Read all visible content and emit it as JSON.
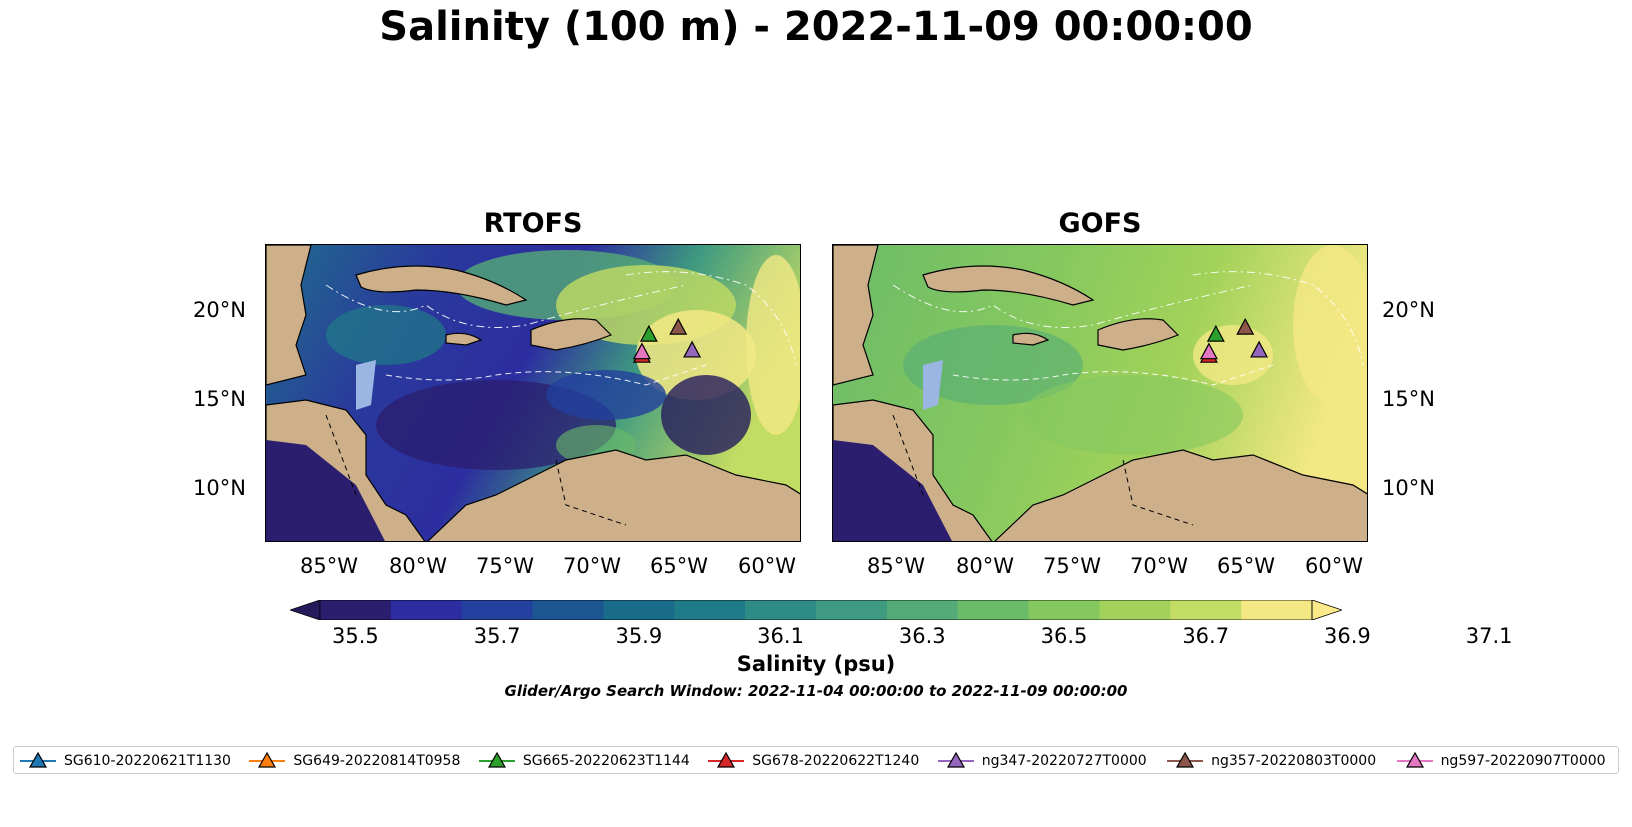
{
  "title": "Salinity (100 m) - 2022-11-09 00:00:00",
  "panels": [
    {
      "title": "RTOFS",
      "style": "rtofs"
    },
    {
      "title": "GOFS",
      "style": "gofs"
    }
  ],
  "lon_labels": [
    "85°W",
    "80°W",
    "75°W",
    "70°W",
    "65°W",
    "60°W"
  ],
  "lat_labels": [
    "20°N",
    "15°N",
    "10°N"
  ],
  "colorbar": {
    "ticks": [
      "35.5",
      "35.7",
      "35.9",
      "36.1",
      "36.3",
      "36.5",
      "36.7",
      "36.9",
      "37.1"
    ],
    "label": "Salinity (psu)",
    "colors": [
      "#2b1e6e",
      "#2c2da0",
      "#23409e",
      "#1c5692",
      "#196b8a",
      "#1f7b88",
      "#2d8a85",
      "#3e9a80",
      "#55ab77",
      "#6bbb69",
      "#85c85f",
      "#a2d25a",
      "#c3dc63",
      "#f3e884"
    ],
    "under_color": "#241a5c",
    "over_color": "#fbe98a"
  },
  "search_window": "Glider/Argo Search Window: 2022-11-04 00:00:00 to 2022-11-09 00:00:00",
  "legend": [
    {
      "label": "SG610-20220621T1130",
      "color": "#1f77b4"
    },
    {
      "label": "SG649-20220814T0958",
      "color": "#ff7f0e"
    },
    {
      "label": "SG665-20220623T1144",
      "color": "#2ca02c"
    },
    {
      "label": "SG678-20220622T1240",
      "color": "#d62728"
    },
    {
      "label": "ng347-20220727T0000",
      "color": "#9467bd"
    },
    {
      "label": "ng357-20220803T0000",
      "color": "#8c564b"
    },
    {
      "label": "ng597-20220907T0000",
      "color": "#e377c2"
    }
  ],
  "map_extent": {
    "lon_min": -89,
    "lon_max": -58,
    "lat_min": 7,
    "lat_max": 24
  },
  "glider_positions": [
    {
      "name": "SG665-20220623T1144",
      "lon": -66.8,
      "lat": 18.8
    },
    {
      "name": "ng357-20220803T0000",
      "lon": -65.1,
      "lat": 19.2
    },
    {
      "name": "ng347-20220727T0000",
      "lon": -64.3,
      "lat": 17.9
    },
    {
      "name": "SG678-20220622T1240",
      "lon": -67.2,
      "lat": 17.6
    },
    {
      "name": "ng597-20220907T0000",
      "lon": -67.2,
      "lat": 17.8
    }
  ]
}
